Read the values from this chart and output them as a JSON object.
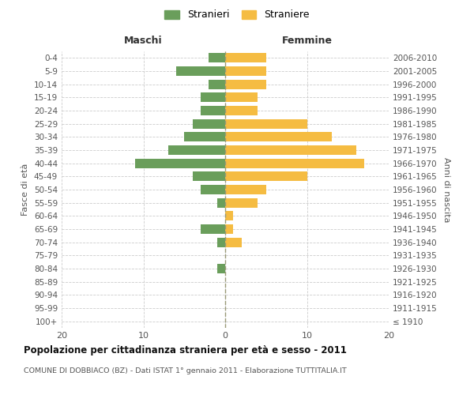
{
  "age_groups": [
    "100+",
    "95-99",
    "90-94",
    "85-89",
    "80-84",
    "75-79",
    "70-74",
    "65-69",
    "60-64",
    "55-59",
    "50-54",
    "45-49",
    "40-44",
    "35-39",
    "30-34",
    "25-29",
    "20-24",
    "15-19",
    "10-14",
    "5-9",
    "0-4"
  ],
  "birth_years": [
    "≤ 1910",
    "1911-1915",
    "1916-1920",
    "1921-1925",
    "1926-1930",
    "1931-1935",
    "1936-1940",
    "1941-1945",
    "1946-1950",
    "1951-1955",
    "1956-1960",
    "1961-1965",
    "1966-1970",
    "1971-1975",
    "1976-1980",
    "1981-1985",
    "1986-1990",
    "1991-1995",
    "1996-2000",
    "2001-2005",
    "2006-2010"
  ],
  "males": [
    0,
    0,
    0,
    0,
    1,
    0,
    1,
    3,
    0,
    1,
    3,
    4,
    11,
    7,
    5,
    4,
    3,
    3,
    2,
    6,
    2
  ],
  "females": [
    0,
    0,
    0,
    0,
    0,
    0,
    2,
    1,
    1,
    4,
    5,
    10,
    17,
    16,
    13,
    10,
    4,
    4,
    5,
    5,
    5
  ],
  "male_color": "#6a9e5b",
  "female_color": "#f5bc42",
  "background_color": "#ffffff",
  "grid_color": "#cccccc",
  "title": "Popolazione per cittadinanza straniera per età e sesso - 2011",
  "subtitle": "COMUNE DI DOBBIACO (BZ) - Dati ISTAT 1° gennaio 2011 - Elaborazione TUTTITALIA.IT",
  "label_maschi": "Maschi",
  "label_femmine": "Femmine",
  "ylabel_left": "Fasce di età",
  "ylabel_right": "Anni di nascita",
  "legend_male": "Stranieri",
  "legend_female": "Straniere",
  "xlim": 20,
  "bar_height": 0.72
}
